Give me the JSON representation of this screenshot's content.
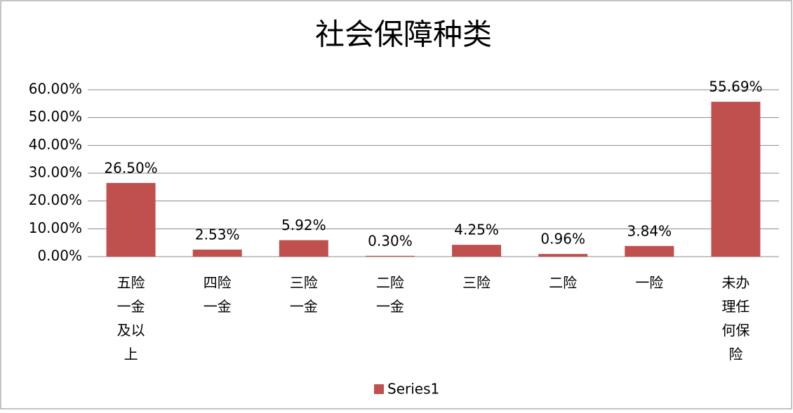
{
  "chart_data": {
    "type": "bar",
    "title": "社会保障种类",
    "categories": [
      "五险一金及以上",
      "四险一金",
      "三险一金",
      "二险一金",
      "三险",
      "二险",
      "一险",
      "未办理任何保险"
    ],
    "series": [
      {
        "name": "Series1",
        "color": "#c0504d",
        "values": [
          26.5,
          2.53,
          5.92,
          0.3,
          4.25,
          0.96,
          3.84,
          55.69
        ],
        "value_labels": [
          "26.50%",
          "2.53%",
          "5.92%",
          "0.30%",
          "4.25%",
          "0.96%",
          "3.84%",
          "55.69%"
        ]
      }
    ],
    "ylim": [
      0,
      60
    ],
    "yticks": [
      {
        "value": 0,
        "label": "0.00%"
      },
      {
        "value": 10,
        "label": "10.00%"
      },
      {
        "value": 20,
        "label": "20.00%"
      },
      {
        "value": 30,
        "label": "30.00%"
      },
      {
        "value": 40,
        "label": "40.00%"
      },
      {
        "value": 50,
        "label": "50.00%"
      },
      {
        "value": 60,
        "label": "60.00%"
      }
    ],
    "grid": true,
    "legend": "bottom"
  }
}
